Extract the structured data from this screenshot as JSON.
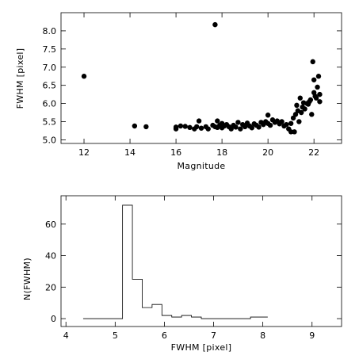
{
  "chart_data": [
    {
      "type": "scatter",
      "title": "",
      "xlabel": "Magnitude",
      "ylabel": "FWHM [pixel]",
      "xlim": [
        11,
        23.2
      ],
      "ylim": [
        4.9,
        8.5
      ],
      "xticks": [
        12,
        14,
        16,
        18,
        20,
        22
      ],
      "yticks": [
        5.0,
        5.5,
        6.0,
        6.5,
        7.0,
        7.5,
        8.0
      ],
      "ytick_format": "fixed1",
      "grid": false,
      "points": [
        [
          12.0,
          6.75
        ],
        [
          14.2,
          5.38
        ],
        [
          14.7,
          5.36
        ],
        [
          17.7,
          8.17
        ],
        [
          16.0,
          5.3
        ],
        [
          16.0,
          5.35
        ],
        [
          16.2,
          5.38
        ],
        [
          16.4,
          5.37
        ],
        [
          16.6,
          5.34
        ],
        [
          16.8,
          5.3
        ],
        [
          16.9,
          5.36
        ],
        [
          17.0,
          5.52
        ],
        [
          17.1,
          5.32
        ],
        [
          17.3,
          5.36
        ],
        [
          17.4,
          5.3
        ],
        [
          17.6,
          5.4
        ],
        [
          17.7,
          5.36
        ],
        [
          17.8,
          5.52
        ],
        [
          17.8,
          5.34
        ],
        [
          17.9,
          5.4
        ],
        [
          18.0,
          5.45
        ],
        [
          18.0,
          5.33
        ],
        [
          18.1,
          5.38
        ],
        [
          18.2,
          5.42
        ],
        [
          18.3,
          5.36
        ],
        [
          18.4,
          5.3
        ],
        [
          18.5,
          5.4
        ],
        [
          18.6,
          5.35
        ],
        [
          18.7,
          5.48
        ],
        [
          18.8,
          5.3
        ],
        [
          18.9,
          5.42
        ],
        [
          19.0,
          5.36
        ],
        [
          19.1,
          5.46
        ],
        [
          19.2,
          5.38
        ],
        [
          19.3,
          5.33
        ],
        [
          19.4,
          5.44
        ],
        [
          19.5,
          5.4
        ],
        [
          19.6,
          5.35
        ],
        [
          19.7,
          5.48
        ],
        [
          19.8,
          5.42
        ],
        [
          19.9,
          5.5
        ],
        [
          20.0,
          5.45
        ],
        [
          20.0,
          5.68
        ],
        [
          20.1,
          5.4
        ],
        [
          20.2,
          5.55
        ],
        [
          20.3,
          5.48
        ],
        [
          20.4,
          5.52
        ],
        [
          20.5,
          5.44
        ],
        [
          20.6,
          5.5
        ],
        [
          20.7,
          5.38
        ],
        [
          20.8,
          5.42
        ],
        [
          20.9,
          5.3
        ],
        [
          21.0,
          5.22
        ],
        [
          21.0,
          5.45
        ],
        [
          21.1,
          5.6
        ],
        [
          21.15,
          5.22
        ],
        [
          21.2,
          5.7
        ],
        [
          21.25,
          5.95
        ],
        [
          21.3,
          5.8
        ],
        [
          21.35,
          5.5
        ],
        [
          21.4,
          6.15
        ],
        [
          21.45,
          5.75
        ],
        [
          21.5,
          5.9
        ],
        [
          21.55,
          6.02
        ],
        [
          21.6,
          5.85
        ],
        [
          21.7,
          6.0
        ],
        [
          21.75,
          5.98
        ],
        [
          21.8,
          6.05
        ],
        [
          21.85,
          6.1
        ],
        [
          21.9,
          5.7
        ],
        [
          21.95,
          7.15
        ],
        [
          22.0,
          6.65
        ],
        [
          22.0,
          6.3
        ],
        [
          22.05,
          6.2
        ],
        [
          22.1,
          6.15
        ],
        [
          22.15,
          6.45
        ],
        [
          22.2,
          6.75
        ],
        [
          22.25,
          6.05
        ],
        [
          22.25,
          6.25
        ]
      ]
    },
    {
      "type": "histogram",
      "title": "",
      "xlabel": "FWHM [pixel]",
      "ylabel": "N(FWHM)",
      "xlim": [
        3.9,
        9.6
      ],
      "ylim": [
        -5,
        78
      ],
      "xticks": [
        4,
        5,
        6,
        7,
        8,
        9
      ],
      "yticks": [
        0,
        20,
        40,
        60
      ],
      "ytick_format": "int",
      "grid": false,
      "bin_edges": [
        4.35,
        4.55,
        4.75,
        4.95,
        5.15,
        5.35,
        5.55,
        5.75,
        5.95,
        6.15,
        6.35,
        6.55,
        6.75,
        6.95,
        7.15,
        7.35,
        7.55,
        7.75,
        7.95,
        8.1
      ],
      "counts": [
        0,
        0,
        0,
        0,
        72,
        25,
        7,
        9,
        2,
        1,
        2,
        1,
        0,
        0,
        0,
        0,
        0,
        1,
        1
      ]
    }
  ]
}
